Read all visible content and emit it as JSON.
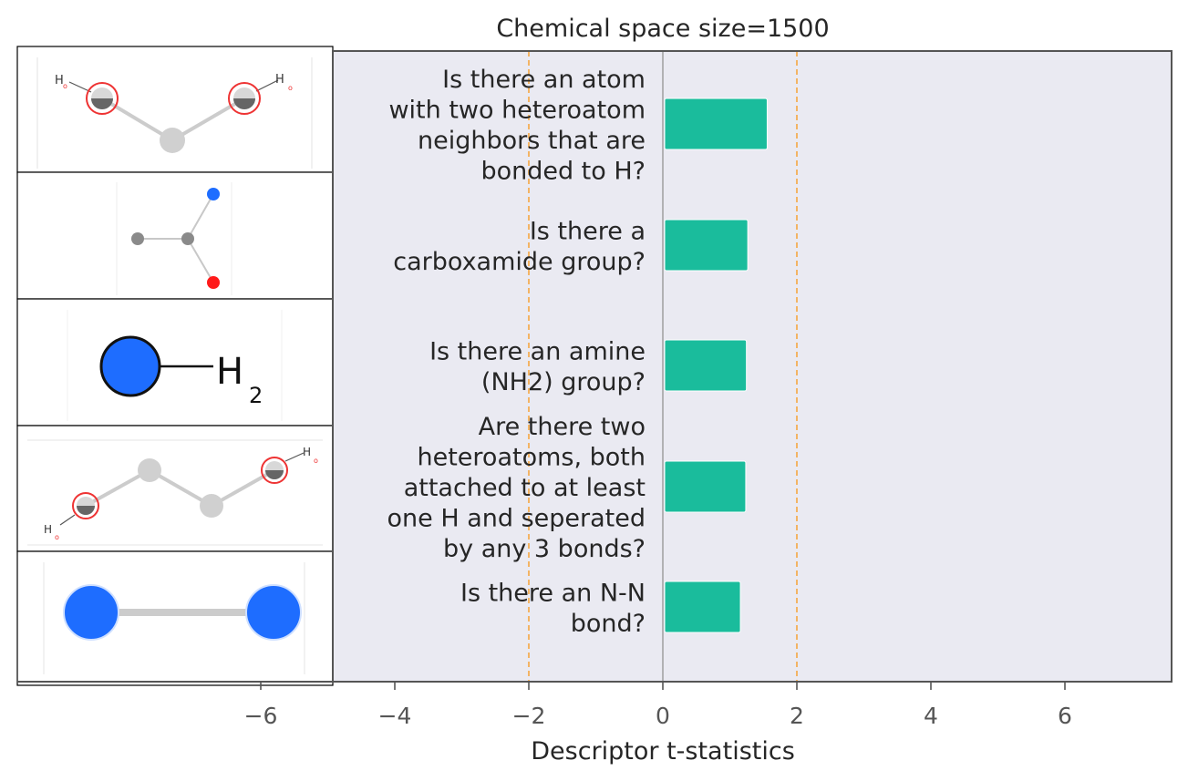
{
  "chart_data": {
    "type": "bar",
    "orientation": "horizontal",
    "title": "Chemical space size=1500",
    "xlabel": "Descriptor t-statistics",
    "ylabel": "",
    "xlim": [
      -7.8,
      7.6
    ],
    "xticks": [
      -6,
      -4,
      -2,
      0,
      2,
      4,
      6
    ],
    "xtick_labels": [
      "−6",
      "−4",
      "−2",
      "0",
      "2",
      "4",
      "6"
    ],
    "significance_lines": [
      -2,
      2
    ],
    "grid": false,
    "categories": [
      [
        "Is there an atom",
        "with two heteroatom",
        "neighbors that are",
        "bonded to H?"
      ],
      [
        "Is there a",
        "carboxamide group?"
      ],
      [
        "Is there an amine",
        "(NH2) group?"
      ],
      [
        "Are there two",
        "heteroatoms, both",
        "attached to at least",
        "one H and seperated",
        "by any 3 bonds?"
      ],
      [
        "Is there an N-N",
        "bond?"
      ]
    ],
    "values": [
      1.53,
      1.24,
      1.22,
      1.21,
      1.13
    ],
    "bar_color": "#1abc9c",
    "threshold_color": "#f5a742",
    "plot_background": "#eaeaf2",
    "molecule_icons": [
      "diol-h-bond-donor-icon",
      "carboxamide-icon",
      "amine-h2-icon",
      "1-4-diol-icon",
      "n-n-bond-icon"
    ]
  }
}
